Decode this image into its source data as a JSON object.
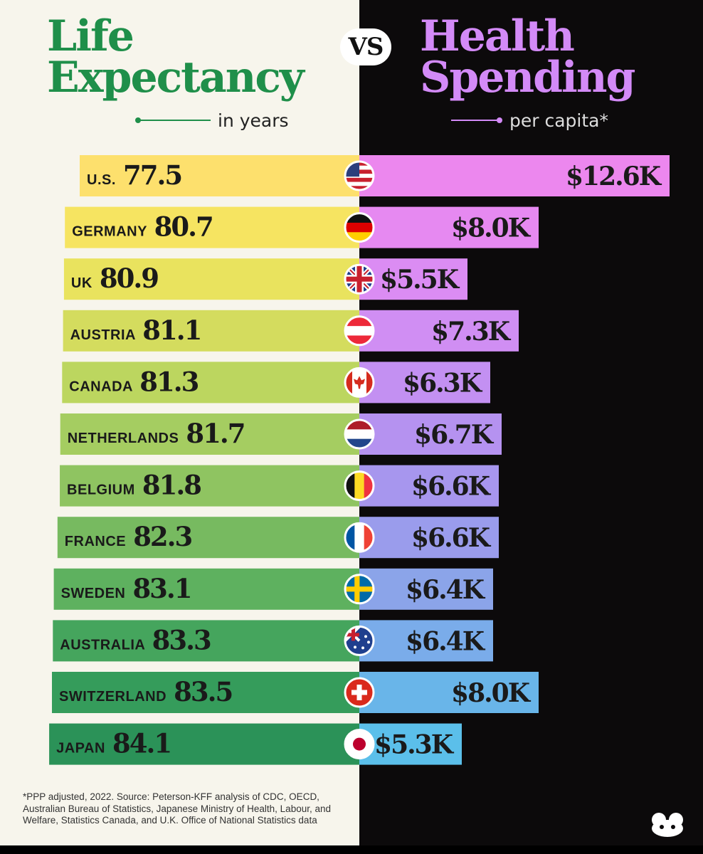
{
  "title_left": [
    "Life",
    "Expectancy"
  ],
  "subtitle_left": "in years",
  "vs_label": "VS",
  "title_right": [
    "Health",
    "Spending"
  ],
  "subtitle_right": "per capita*",
  "footnote": "*PPP adjusted, 2022. Source: Peterson-KFF analysis of CDC, OECD, Australian Bureau of Statistics, Japanese Ministry of Health, Labour, and Welfare, Statistics Canada, and U.K. Office of National Statistics data",
  "icons": {
    "logo": "visual-capitalist-logo-icon"
  },
  "chart_data": {
    "type": "bar",
    "categories": [
      "U.S.",
      "GERMANY",
      "UK",
      "AUSTRIA",
      "CANADA",
      "NETHERLANDS",
      "BELGIUM",
      "FRANCE",
      "SWEDEN",
      "AUSTRALIA",
      "SWITZERLAND",
      "JAPAN"
    ],
    "series": [
      {
        "name": "Life Expectancy",
        "values": [
          77.5,
          80.7,
          80.9,
          81.1,
          81.3,
          81.7,
          81.8,
          82.3,
          83.1,
          83.3,
          83.5,
          84.1
        ],
        "labels": [
          "77.5",
          "80.7",
          "80.9",
          "81.1",
          "81.3",
          "81.7",
          "81.8",
          "82.3",
          "83.1",
          "83.3",
          "83.5",
          "84.1"
        ],
        "colors": [
          "#fde06d",
          "#f6e461",
          "#e9e35e",
          "#d4dc5e",
          "#bcd65f",
          "#a5cd61",
          "#8fc461",
          "#77ba60",
          "#5eb15f",
          "#45a55d",
          "#359c5b",
          "#2b9258"
        ]
      },
      {
        "name": "Health Spending",
        "values": [
          12.6,
          8.0,
          5.5,
          7.3,
          6.3,
          6.7,
          6.6,
          6.6,
          6.4,
          6.4,
          8.0,
          5.3
        ],
        "labels": [
          "$12.6K",
          "$8.0K",
          "$5.5K",
          "$7.3K",
          "$6.3K",
          "$6.7K",
          "$6.6K",
          "$6.6K",
          "$6.4K",
          "$6.4K",
          "$8.0K",
          "$5.3K"
        ],
        "colors": [
          "#ec87ee",
          "#e689f1",
          "#db8cf3",
          "#d08ef3",
          "#c390f2",
          "#b592f0",
          "#a796ee",
          "#9a9cec",
          "#8ba4e9",
          "#7aacea",
          "#69b5e9",
          "#5bbfea"
        ]
      }
    ],
    "flags": [
      "us-flag-icon",
      "germany-flag-icon",
      "uk-flag-icon",
      "austria-flag-icon",
      "canada-flag-icon",
      "netherlands-flag-icon",
      "belgium-flag-icon",
      "france-flag-icon",
      "sweden-flag-icon",
      "australia-flag-icon",
      "switzerland-flag-icon",
      "japan-flag-icon"
    ]
  }
}
